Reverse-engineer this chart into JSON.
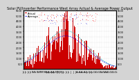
{
  "title": "Solar PV/Inverter Performance West Array Actual & Average Power Output",
  "title_fontsize": 3.5,
  "bg_color": "#d4d4d4",
  "plot_bg_color": "#ffffff",
  "grid_color": "#aaaaaa",
  "bar_color": "#cc0000",
  "avg_line_color": "#0000ff",
  "avg_line_color2": "#00aaaa",
  "dot_color_red": "#ff0000",
  "dot_color_blue": "#0000cc",
  "dot_color_orange": "#ff6600",
  "ylim": [
    0,
    5500
  ],
  "yticks_left": [
    500,
    1000,
    1500,
    2000,
    2500,
    3000,
    3500,
    4000,
    4500,
    5000,
    5500
  ],
  "tick_fontsize": 2.5,
  "num_bars": 365,
  "peak_value": 4800,
  "peak_day": 165,
  "sigma": 85,
  "legend_fontsize": 2.8
}
